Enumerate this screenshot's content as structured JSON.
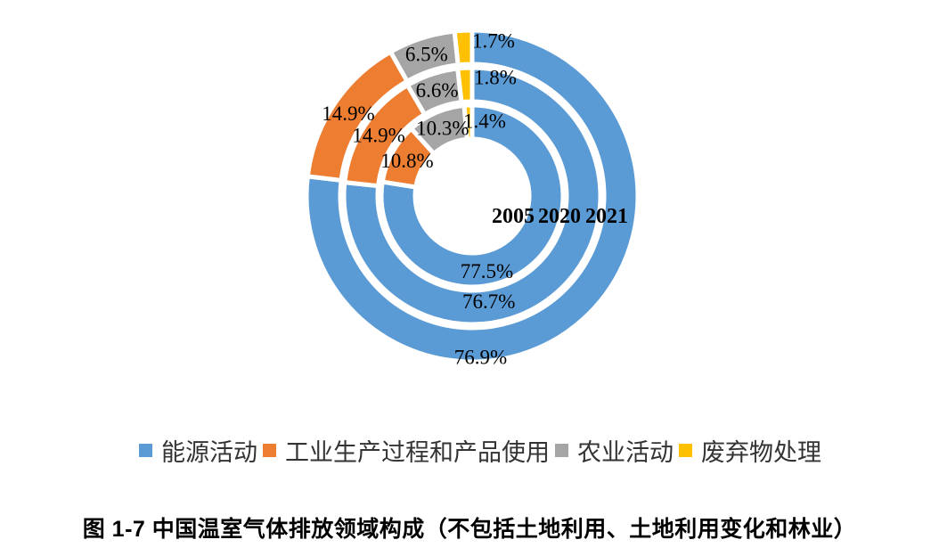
{
  "chart_data": {
    "type": "donut",
    "title": "图 1-7 中国温室气体排放领域构成（不包括土地利用、土地利用变化和林业）",
    "unit": "%",
    "direction": "clockwise",
    "start_angle_deg": 0,
    "legend_position": "bottom",
    "ring_order": "innermost to outermost",
    "categories": [
      "能源活动",
      "工业生产过程和产品使用",
      "农业活动",
      "废弃物处理"
    ],
    "category_keys": [
      "energy",
      "industrial-process",
      "agriculture",
      "waste"
    ],
    "colors": [
      "#5B9BD5",
      "#ED7D31",
      "#A5A5A5",
      "#FFC000"
    ],
    "rings": [
      {
        "year": "2005",
        "values": [
          77.5,
          10.8,
          10.3,
          1.4
        ],
        "labels": [
          "77.5%",
          "10.8%",
          "10.3%",
          "1.4%"
        ]
      },
      {
        "year": "2020",
        "values": [
          76.7,
          14.9,
          6.6,
          1.8
        ],
        "labels": [
          "76.7%",
          "14.9%",
          "6.6%",
          "1.8%"
        ]
      },
      {
        "year": "2021",
        "values": [
          76.9,
          14.9,
          6.5,
          1.7
        ],
        "labels": [
          "76.9%",
          "14.9%",
          "6.5%",
          "1.7%"
        ]
      }
    ]
  },
  "legend": {
    "items": [
      {
        "label": "能源活动",
        "color": "#5B9BD5"
      },
      {
        "label": "工业生产过程和产品使用",
        "color": "#ED7D31"
      },
      {
        "label": "农业活动",
        "color": "#A5A5A5"
      },
      {
        "label": "废弃物处理",
        "color": "#FFC000"
      }
    ]
  },
  "caption": "图 1-7 中国温室气体排放领域构成（不包括土地利用、土地利用变化和林业）"
}
